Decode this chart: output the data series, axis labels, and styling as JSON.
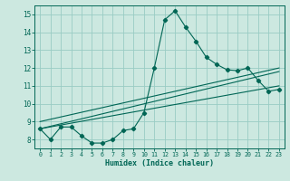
{
  "xlabel": "Humidex (Indice chaleur)",
  "xlim": [
    -0.5,
    23.5
  ],
  "ylim": [
    7.5,
    15.5
  ],
  "xticks": [
    0,
    1,
    2,
    3,
    4,
    5,
    6,
    7,
    8,
    9,
    10,
    11,
    12,
    13,
    14,
    15,
    16,
    17,
    18,
    19,
    20,
    21,
    22,
    23
  ],
  "yticks": [
    8,
    9,
    10,
    11,
    12,
    13,
    14,
    15
  ],
  "bg_color": "#cce8e0",
  "grid_color": "#99ccc4",
  "line_color": "#006655",
  "series1": [
    8.6,
    8.0,
    8.7,
    8.7,
    8.2,
    7.8,
    7.8,
    8.0,
    8.5,
    8.6,
    9.5,
    12.0,
    14.7,
    15.2,
    14.3,
    13.5,
    12.6,
    12.2,
    11.9,
    11.85,
    12.0,
    11.3,
    10.7,
    10.8
  ],
  "series2_x": [
    0,
    23
  ],
  "series2_y": [
    8.6,
    11.0
  ],
  "series3_x": [
    0,
    23
  ],
  "series3_y": [
    8.6,
    11.8
  ],
  "series4_x": [
    0,
    23
  ],
  "series4_y": [
    9.0,
    12.0
  ],
  "markers1": [
    0,
    1,
    2,
    3,
    4,
    5,
    6,
    7,
    8,
    9,
    10,
    11,
    12,
    13,
    14,
    15,
    16,
    17,
    18,
    19,
    20,
    21,
    22,
    23
  ]
}
